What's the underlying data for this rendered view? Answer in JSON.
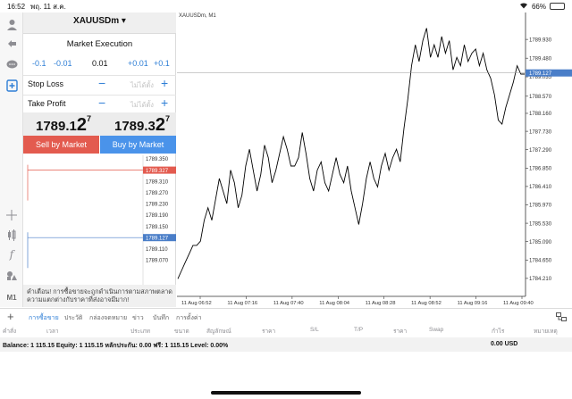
{
  "status": {
    "time": "16:52",
    "date": "พฤ. 11 ส.ค.",
    "battery": "66%",
    "battery_level": 0.66
  },
  "toolbar": {
    "items": [
      {
        "name": "account-icon",
        "glyph": "👤"
      },
      {
        "name": "trade-icon",
        "glyph": "⇅"
      },
      {
        "name": "chat-icon",
        "glyph": "💬"
      },
      {
        "name": "new-order-icon",
        "glyph": "⊞"
      },
      {
        "name": "crosshair-icon",
        "glyph": "+"
      },
      {
        "name": "indicators-icon",
        "glyph": "⫶"
      },
      {
        "name": "function-icon",
        "glyph": "f"
      },
      {
        "name": "objects-icon",
        "glyph": "◆"
      },
      {
        "name": "timeframe-label",
        "glyph": "M1"
      }
    ]
  },
  "order": {
    "symbol": "XAUUSDm ▾",
    "execution": "Market Execution",
    "volume": {
      "m1": "-0.1",
      "m2": "-0.01",
      "value": "0.01",
      "p1": "+0.01",
      "p2": "+0.1"
    },
    "stop_loss": {
      "label": "Stop Loss",
      "placeholder": "ไม่ได้ตั้ง",
      "minus": "−",
      "plus": "+"
    },
    "take_profit": {
      "label": "Take Profit",
      "placeholder": "ไม่ได้ตั้ง",
      "minus": "−",
      "plus": "+"
    },
    "bid": {
      "main": "1789.1",
      "big": "2",
      "small": "7"
    },
    "ask": {
      "main": "1789.3",
      "big": "2",
      "small": "7"
    },
    "sell_label": "Sell by Market",
    "buy_label": "Buy by Market",
    "mini_levels": [
      "1789.350",
      "1789.327",
      "1789.310",
      "1789.270",
      "1789.230",
      "1789.190",
      "1789.150",
      "1789.127",
      "1789.110",
      "1789.070"
    ],
    "warning": "คำเตือน! การซื้อขายจะถูกดำเนินการตามสภาพตลาด ความแตกต่างกับราคาที่ส่งอาจมีมาก!"
  },
  "chart": {
    "title": "XAUUSDm, M1",
    "y_ticks": [
      "1789.930",
      "1789.480",
      "1789.035",
      "1788.570",
      "1788.160",
      "1787.730",
      "1787.290",
      "1786.850",
      "1786.410",
      "1785.970",
      "1785.530",
      "1785.090",
      "1784.650",
      "1784.210"
    ],
    "current_price": "1789.127",
    "x_ticks": [
      "11 Aug 06:52",
      "11 Aug 07:16",
      "11 Aug 07:40",
      "11 Aug 08:04",
      "11 Aug 08:28",
      "11 Aug 08:52",
      "11 Aug 09:16",
      "11 Aug 09:40"
    ],
    "colors": {
      "line": "#000000",
      "grid": "#eeeeee",
      "price_tag": "#4a7ec8"
    }
  },
  "chart_data": {
    "type": "line",
    "title": "XAUUSDm, M1",
    "xlabel": "",
    "ylabel": "",
    "ylim": [
      1783.78,
      1790.36
    ],
    "x_ticks": [
      "11 Aug 06:52",
      "11 Aug 07:16",
      "11 Aug 07:40",
      "11 Aug 08:04",
      "11 Aug 08:28",
      "11 Aug 08:52",
      "11 Aug 09:16",
      "11 Aug 09:40"
    ],
    "series": [
      {
        "name": "",
        "values": [
          1784.2,
          1784.4,
          1784.6,
          1784.8,
          1785.0,
          1785.0,
          1785.1,
          1785.6,
          1785.9,
          1785.6,
          1786.1,
          1786.6,
          1786.3,
          1786.0,
          1786.8,
          1786.5,
          1785.9,
          1786.2,
          1786.9,
          1787.3,
          1786.8,
          1786.3,
          1786.7,
          1787.4,
          1787.1,
          1786.5,
          1786.8,
          1787.2,
          1787.6,
          1787.3,
          1786.9,
          1786.9,
          1787.1,
          1787.7,
          1787.2,
          1786.6,
          1786.3,
          1786.8,
          1787.0,
          1786.5,
          1786.3,
          1786.7,
          1787.1,
          1786.7,
          1786.5,
          1786.9,
          1786.3,
          1785.9,
          1785.5,
          1786.0,
          1786.6,
          1787.0,
          1786.6,
          1786.4,
          1786.9,
          1787.2,
          1786.8,
          1787.1,
          1787.3,
          1787.0,
          1787.8,
          1788.5,
          1789.3,
          1789.8,
          1789.4,
          1789.9,
          1790.2,
          1789.5,
          1789.8,
          1789.5,
          1790.0,
          1789.6,
          1789.9,
          1789.2,
          1789.5,
          1789.3,
          1789.8,
          1789.4,
          1789.6,
          1789.7,
          1789.3,
          1789.6,
          1789.2,
          1789.0,
          1788.6,
          1788.0,
          1787.9,
          1788.3,
          1788.6,
          1788.9,
          1789.3,
          1789.1,
          1789.1
        ]
      }
    ],
    "current_price": 1789.127
  },
  "tabs": {
    "add": "+",
    "items": [
      "การซื้อขาย",
      "ประวัติ",
      "กล่องจดหมาย",
      "ข่าว",
      "บันทึก",
      "การตั้งค่า"
    ]
  },
  "table": {
    "headers": [
      "คำสั่ง",
      "เวลา",
      "ประเภท",
      "ขนาด",
      "สัญลักษณ์",
      "ราคา",
      "S/L",
      "T/P",
      "ราคา",
      "Swap",
      "กำไร",
      "หมายเหตุ"
    ]
  },
  "balance": {
    "text": "Balance: 1 115.15 Equity: 1 115.15 หลักประกัน: 0.00 ฟรี: 1 115.15 Level: 0.00%",
    "profit": "0.00 USD"
  }
}
